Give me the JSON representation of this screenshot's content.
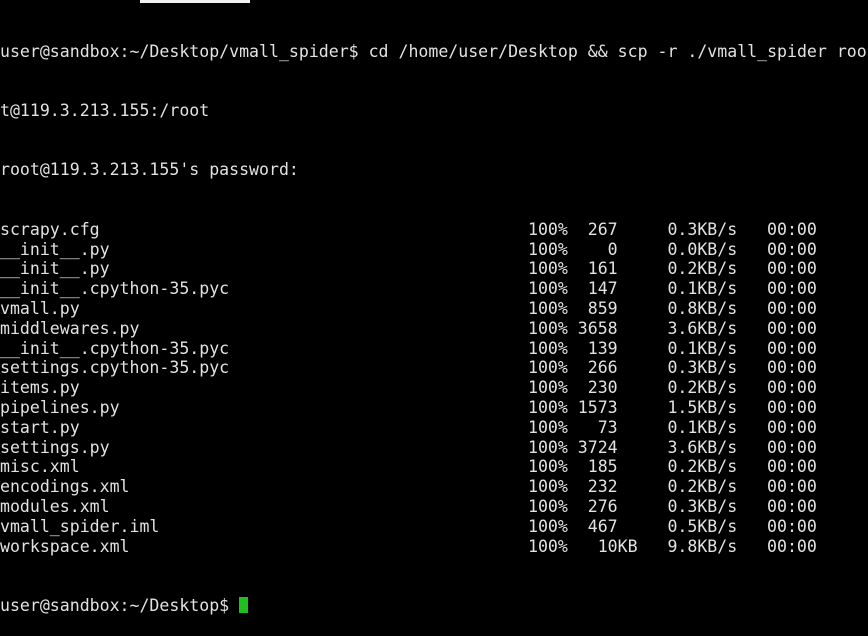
{
  "terminal": {
    "command_line_1": "user@sandbox:~/Desktop/vmall_spider$ cd /home/user/Desktop && scp -r ./vmall_spider roo",
    "command_line_2": "t@119.3.213.155:/root",
    "password_prompt": "root@119.3.213.155's password:",
    "transfers": [
      {
        "name": "scrapy.cfg",
        "pct": "100%",
        "size": " 267",
        "rate": "0.3KB/s",
        "time": "00:00"
      },
      {
        "name": "__init__.py",
        "pct": "100%",
        "size": "   0",
        "rate": "0.0KB/s",
        "time": "00:00"
      },
      {
        "name": "__init__.py",
        "pct": "100%",
        "size": " 161",
        "rate": "0.2KB/s",
        "time": "00:00"
      },
      {
        "name": "__init__.cpython-35.pyc",
        "pct": "100%",
        "size": " 147",
        "rate": "0.1KB/s",
        "time": "00:00"
      },
      {
        "name": "vmall.py",
        "pct": "100%",
        "size": " 859",
        "rate": "0.8KB/s",
        "time": "00:00"
      },
      {
        "name": "middlewares.py",
        "pct": "100%",
        "size": "3658",
        "rate": "3.6KB/s",
        "time": "00:00"
      },
      {
        "name": "__init__.cpython-35.pyc",
        "pct": "100%",
        "size": " 139",
        "rate": "0.1KB/s",
        "time": "00:00"
      },
      {
        "name": "settings.cpython-35.pyc",
        "pct": "100%",
        "size": " 266",
        "rate": "0.3KB/s",
        "time": "00:00"
      },
      {
        "name": "items.py",
        "pct": "100%",
        "size": " 230",
        "rate": "0.2KB/s",
        "time": "00:00"
      },
      {
        "name": "pipelines.py",
        "pct": "100%",
        "size": "1573",
        "rate": "1.5KB/s",
        "time": "00:00"
      },
      {
        "name": "start.py",
        "pct": "100%",
        "size": "  73",
        "rate": "0.1KB/s",
        "time": "00:00"
      },
      {
        "name": "settings.py",
        "pct": "100%",
        "size": "3724",
        "rate": "3.6KB/s",
        "time": "00:00"
      },
      {
        "name": "misc.xml",
        "pct": "100%",
        "size": " 185",
        "rate": "0.2KB/s",
        "time": "00:00"
      },
      {
        "name": "encodings.xml",
        "pct": "100%",
        "size": " 232",
        "rate": "0.2KB/s",
        "time": "00:00"
      },
      {
        "name": "modules.xml",
        "pct": "100%",
        "size": " 276",
        "rate": "0.3KB/s",
        "time": "00:00"
      },
      {
        "name": "vmall_spider.iml",
        "pct": "100%",
        "size": " 467",
        "rate": "0.5KB/s",
        "time": "00:00"
      },
      {
        "name": "workspace.xml",
        "pct": "100%",
        "size": "  10KB",
        "rate": "9.8KB/s",
        "time": "00:00"
      }
    ],
    "final_prompt": "user@sandbox:~/Desktop$ ",
    "cursor_color": "#1fbf1f"
  }
}
